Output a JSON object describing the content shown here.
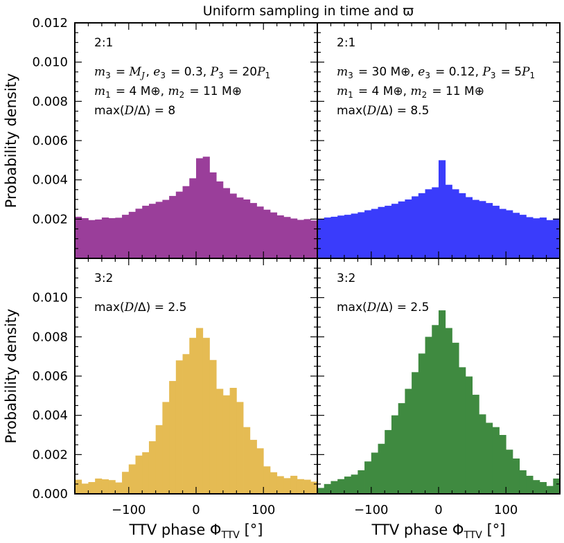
{
  "figure": {
    "title": "Uniform sampling in time and ϖ",
    "ylabel": "Probability density",
    "xlabel": "TTV phase Φ",
    "xlabel_sub": "TTV",
    "xlabel_unit": " [°]"
  },
  "chart_data": [
    {
      "type": "bar",
      "panel": "top-left",
      "label": "2:1",
      "annotations": [
        "m3 = MJ, e3 = 0.3, P3 = 20P1",
        "m1 = 4 M⊕, m2 = 11 M⊕",
        "max(D/Δ) = 8"
      ],
      "color": "#9a3e9a",
      "xlim": [
        -180,
        180
      ],
      "ylim": [
        0,
        0.012
      ],
      "bin_width": 10,
      "yticks": [
        "0.002",
        "0.004",
        "0.006",
        "0.008",
        "0.010",
        "0.012"
      ],
      "xticks": [
        "-100",
        "0",
        "100"
      ],
      "values": [
        0.00212,
        0.00205,
        0.00195,
        0.00198,
        0.00208,
        0.00205,
        0.00207,
        0.00222,
        0.00237,
        0.00253,
        0.00268,
        0.00278,
        0.00288,
        0.00298,
        0.00318,
        0.0034,
        0.00368,
        0.00408,
        0.0051,
        0.00518,
        0.00438,
        0.00392,
        0.00358,
        0.0033,
        0.0031,
        0.003,
        0.00282,
        0.00264,
        0.00248,
        0.00234,
        0.00219,
        0.00211,
        0.00203,
        0.00196,
        0.002,
        0.00193
      ]
    },
    {
      "type": "bar",
      "panel": "top-right",
      "label": "2:1",
      "annotations": [
        "m3 = 30 M⊕, e3 = 0.12, P3 = 5P1",
        "m1 = 4 M⊕, m2 = 11 M⊕",
        "max(D/Δ) = 8.5"
      ],
      "color": "#3a3cfb",
      "xlim": [
        -180,
        180
      ],
      "ylim": [
        0,
        0.012
      ],
      "bin_width": 10,
      "yticks": [
        "0.002",
        "0.004",
        "0.006",
        "0.008",
        "0.010",
        "0.012"
      ],
      "xticks": [
        "-100",
        "0",
        "100"
      ],
      "values": [
        0.002,
        0.00208,
        0.00212,
        0.00218,
        0.00222,
        0.00228,
        0.00235,
        0.00245,
        0.00252,
        0.00262,
        0.00268,
        0.00278,
        0.0029,
        0.003,
        0.00316,
        0.00332,
        0.00352,
        0.00362,
        0.005,
        0.00375,
        0.00352,
        0.00332,
        0.00312,
        0.00298,
        0.00292,
        0.00282,
        0.00268,
        0.00252,
        0.00245,
        0.00232,
        0.00222,
        0.0021,
        0.00204,
        0.00208,
        0.00195,
        0.00203
      ]
    },
    {
      "type": "bar",
      "panel": "bottom-left",
      "label": "3:2",
      "annotations": [
        "max(D/Δ) = 2.5"
      ],
      "color": "#e5bb53",
      "xlim": [
        -180,
        180
      ],
      "ylim": [
        0,
        0.012
      ],
      "bin_width": 10,
      "yticks": [
        "0.000",
        "0.002",
        "0.004",
        "0.006",
        "0.008",
        "0.010"
      ],
      "xticks": [
        "-100",
        "0",
        "100"
      ],
      "values": [
        0.00072,
        0.00052,
        0.0006,
        0.00078,
        0.00074,
        0.0007,
        0.00058,
        0.00112,
        0.0015,
        0.00195,
        0.00212,
        0.00268,
        0.0035,
        0.00468,
        0.00575,
        0.0068,
        0.00712,
        0.00795,
        0.00845,
        0.00795,
        0.00682,
        0.00535,
        0.00502,
        0.0054,
        0.00468,
        0.0034,
        0.00275,
        0.00232,
        0.0014,
        0.0011,
        0.0009,
        0.0008,
        0.00092,
        0.00075,
        0.00072,
        0.00062
      ]
    },
    {
      "type": "bar",
      "panel": "bottom-right",
      "label": "3:2",
      "annotations": [
        "max(D/Δ) = 2.5"
      ],
      "color": "#3f8a40",
      "xlim": [
        -180,
        180
      ],
      "ylim": [
        0,
        0.012
      ],
      "bin_width": 10,
      "yticks": [
        "0.000",
        "0.002",
        "0.004",
        "0.006",
        "0.008",
        "0.010"
      ],
      "xticks": [
        "-100",
        "0",
        "100"
      ],
      "values": [
        0.0003,
        0.0005,
        0.00065,
        0.00075,
        0.00088,
        0.00098,
        0.0012,
        0.00165,
        0.0021,
        0.00255,
        0.00325,
        0.004,
        0.00462,
        0.00535,
        0.0062,
        0.00715,
        0.008,
        0.0086,
        0.00935,
        0.00845,
        0.0077,
        0.00645,
        0.00598,
        0.00505,
        0.00405,
        0.00362,
        0.0034,
        0.003,
        0.00225,
        0.0018,
        0.0012,
        0.00092,
        0.0007,
        0.0006,
        0.0004,
        0.00078
      ]
    }
  ]
}
